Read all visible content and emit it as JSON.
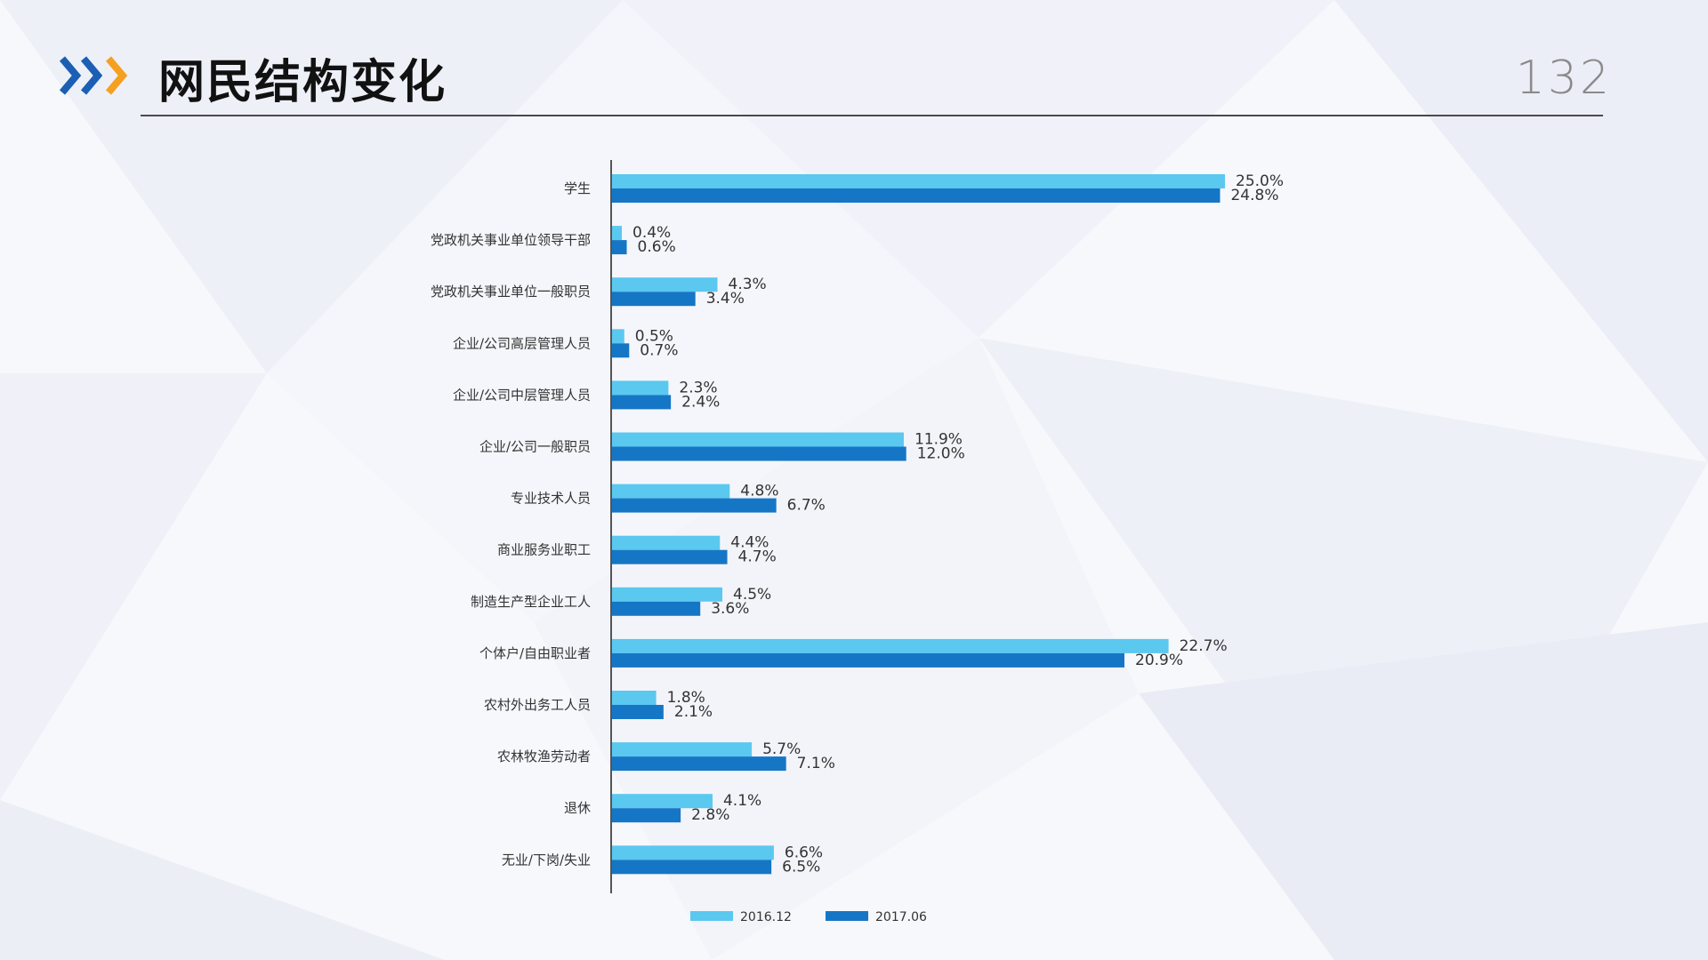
{
  "slide": {
    "title": "网民结构变化",
    "page_number": "132"
  },
  "colors": {
    "series_2016": "#5bc8ef",
    "series_2017": "#1676c6",
    "accent_blue": "#1a5fb4",
    "accent_orange": "#f5a020"
  },
  "icons": {
    "header": "triple-chevron-right-icon"
  },
  "chart_data": {
    "type": "bar",
    "orientation": "horizontal",
    "categories": [
      "学生",
      "党政机关事业单位领导干部",
      "党政机关事业单位一般职员",
      "企业/公司高层管理人员",
      "企业/公司中层管理人员",
      "企业/公司一般职员",
      "专业技术人员",
      "商业服务业职工",
      "制造生产型企业工人",
      "个体户/自由职业者",
      "农村外出务工人员",
      "农林牧渔劳动者",
      "退休",
      "无业/下岗/失业"
    ],
    "series": [
      {
        "name": "2016.12",
        "values": [
          25.0,
          0.4,
          4.3,
          0.5,
          2.3,
          11.9,
          4.8,
          4.4,
          4.5,
          22.7,
          1.8,
          5.7,
          4.1,
          6.6
        ],
        "labels": [
          "25.0%",
          "0.4%",
          "4.3%",
          "0.5%",
          "2.3%",
          "11.9%",
          "4.8%",
          "4.4%",
          "4.5%",
          "22.7%",
          "1.8%",
          "5.7%",
          "4.1%",
          "6.6%"
        ]
      },
      {
        "name": "2017.06",
        "values": [
          24.8,
          0.6,
          3.4,
          0.7,
          2.4,
          12.0,
          6.7,
          4.7,
          3.6,
          20.9,
          2.1,
          7.1,
          2.8,
          6.5
        ],
        "labels": [
          "24.8%",
          "0.6%",
          "3.4%",
          "0.7%",
          "2.4%",
          "12.0%",
          "6.7%",
          "4.7%",
          "3.6%",
          "20.9%",
          "2.1%",
          "7.1%",
          "2.8%",
          "6.5%"
        ]
      }
    ],
    "xlim": [
      0,
      25
    ],
    "grid": false,
    "legend_position": "bottom"
  }
}
